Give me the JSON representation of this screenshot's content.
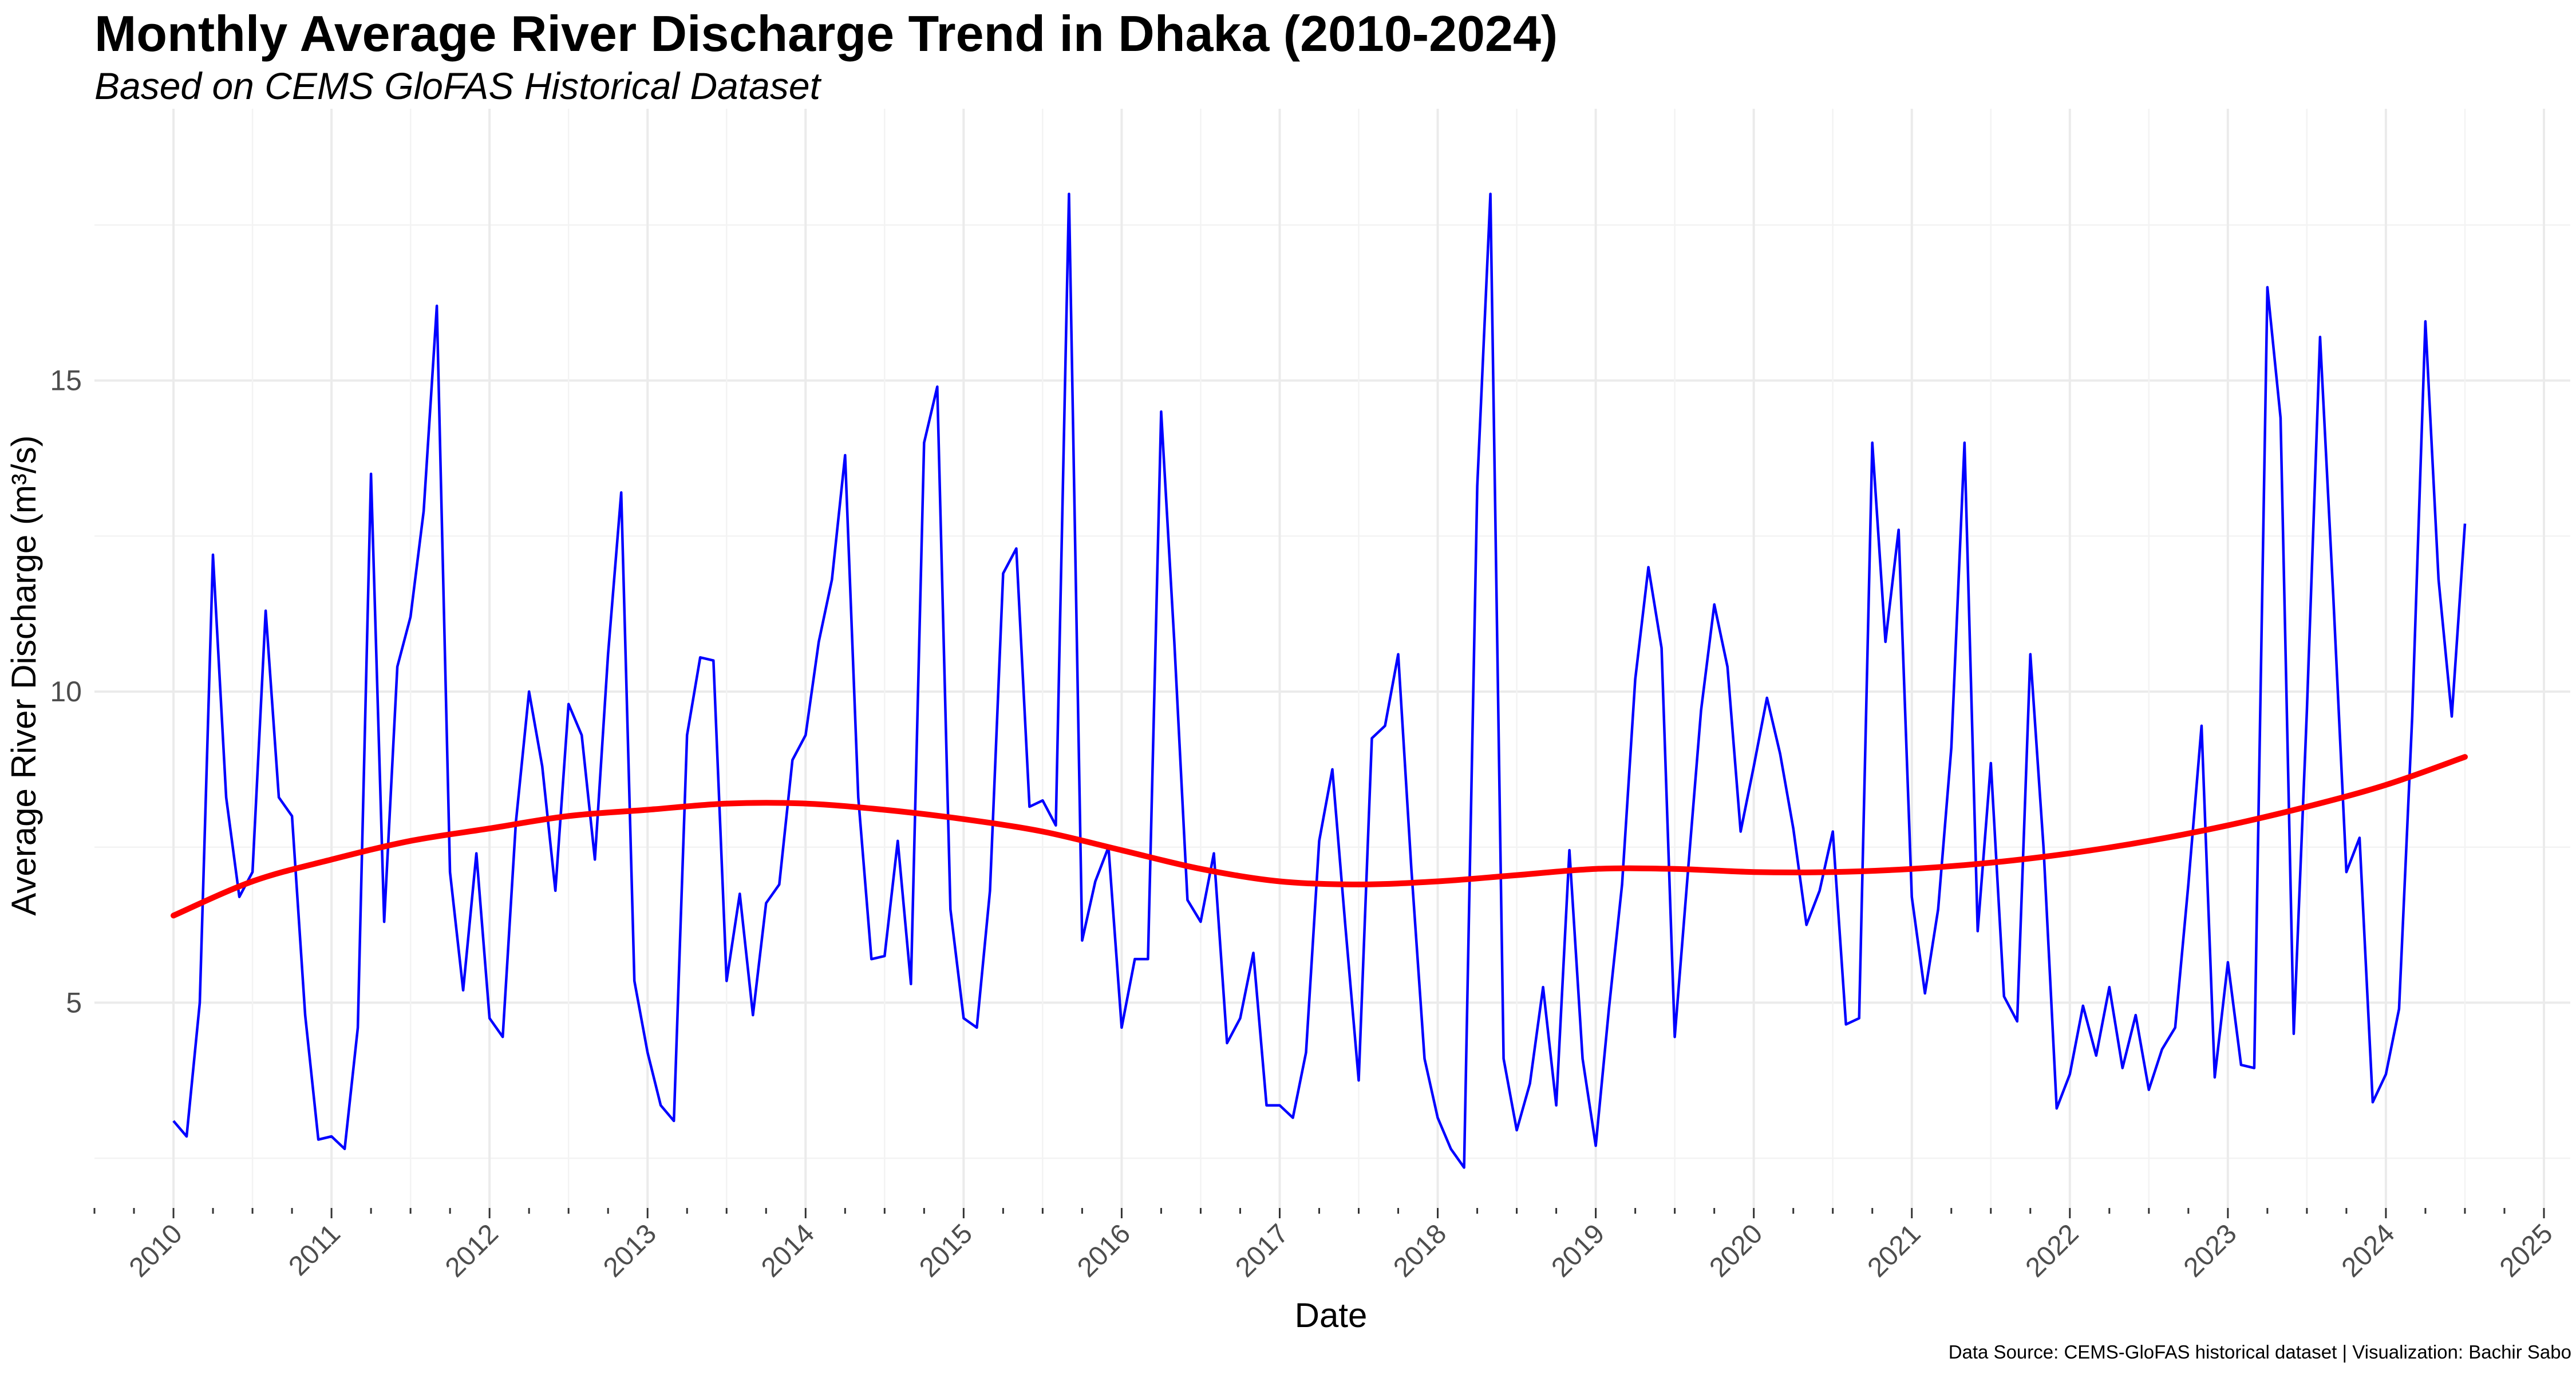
{
  "chart_data": {
    "type": "line",
    "title": "Monthly Average River Discharge Trend in Dhaka (2010-2024)",
    "subtitle": "Based on CEMS GloFAS Historical Dataset",
    "caption": "Data Source: CEMS-GloFAS historical dataset | Visualization: Bachir Sabo",
    "xlabel": "Date",
    "ylabel": "Average River Discharge (m³/s)",
    "x_tick_labels": [
      "2010",
      "2011",
      "2012",
      "2013",
      "2014",
      "2015",
      "2016",
      "2017",
      "2018",
      "2019",
      "2020",
      "2021",
      "2022",
      "2023",
      "2024",
      "2025"
    ],
    "y_ticks": [
      5,
      10,
      15
    ],
    "xlim": [
      "2009-07",
      "2025-03"
    ],
    "ylim": [
      1.7,
      19.0
    ],
    "grid": true,
    "series": [
      {
        "color": "#0000ff",
        "x": [
          "2010-01",
          "2010-02",
          "2010-03",
          "2010-04",
          "2010-05",
          "2010-06",
          "2010-07",
          "2010-08",
          "2010-09",
          "2010-10",
          "2010-11",
          "2010-12",
          "2011-01",
          "2011-02",
          "2011-03",
          "2011-04",
          "2011-05",
          "2011-06",
          "2011-07",
          "2011-08",
          "2011-09",
          "2011-10",
          "2011-11",
          "2011-12",
          "2012-01",
          "2012-02",
          "2012-03",
          "2012-04",
          "2012-05",
          "2012-06",
          "2012-07",
          "2012-08",
          "2012-09",
          "2012-10",
          "2012-11",
          "2012-12",
          "2013-01",
          "2013-02",
          "2013-03",
          "2013-04",
          "2013-05",
          "2013-06",
          "2013-07",
          "2013-08",
          "2013-09",
          "2013-10",
          "2013-11",
          "2013-12",
          "2014-01",
          "2014-02",
          "2014-03",
          "2014-04",
          "2014-05",
          "2014-06",
          "2014-07",
          "2014-08",
          "2014-09",
          "2014-10",
          "2014-11",
          "2014-12",
          "2015-01",
          "2015-02",
          "2015-03",
          "2015-04",
          "2015-05",
          "2015-06",
          "2015-07",
          "2015-08",
          "2015-09",
          "2015-10",
          "2015-11",
          "2015-12",
          "2016-01",
          "2016-02",
          "2016-03",
          "2016-04",
          "2016-05",
          "2016-06",
          "2016-07",
          "2016-08",
          "2016-09",
          "2016-10",
          "2016-11",
          "2016-12",
          "2017-01",
          "2017-02",
          "2017-03",
          "2017-04",
          "2017-05",
          "2017-06",
          "2017-07",
          "2017-08",
          "2017-09",
          "2017-10",
          "2017-11",
          "2017-12",
          "2018-01",
          "2018-02",
          "2018-03",
          "2018-04",
          "2018-05",
          "2018-06",
          "2018-07",
          "2018-08",
          "2018-09",
          "2018-10",
          "2018-11",
          "2018-12",
          "2019-01",
          "2019-02",
          "2019-03",
          "2019-04",
          "2019-05",
          "2019-06",
          "2019-07",
          "2019-08",
          "2019-09",
          "2019-10",
          "2019-11",
          "2019-12",
          "2020-01",
          "2020-02",
          "2020-03",
          "2020-04",
          "2020-05",
          "2020-06",
          "2020-07",
          "2020-08",
          "2020-09",
          "2020-10",
          "2020-11",
          "2020-12",
          "2021-01",
          "2021-02",
          "2021-03",
          "2021-04",
          "2021-05",
          "2021-06",
          "2021-07",
          "2021-08",
          "2021-09",
          "2021-10",
          "2021-11",
          "2021-12",
          "2022-01",
          "2022-02",
          "2022-03",
          "2022-04",
          "2022-05",
          "2022-06",
          "2022-07",
          "2022-08",
          "2022-09",
          "2022-10",
          "2022-11",
          "2022-12",
          "2023-01",
          "2023-02",
          "2023-03",
          "2023-04",
          "2023-05",
          "2023-06",
          "2023-07",
          "2023-08",
          "2023-09",
          "2023-10",
          "2023-11",
          "2023-12",
          "2024-01",
          "2024-02",
          "2024-03",
          "2024-04",
          "2024-05",
          "2024-06",
          "2024-07"
        ],
        "y": [
          3.1,
          2.85,
          5.0,
          12.2,
          8.3,
          6.7,
          7.1,
          11.3,
          8.3,
          8.0,
          4.8,
          2.8,
          2.85,
          2.65,
          4.6,
          13.5,
          6.3,
          10.4,
          11.2,
          12.9,
          16.2,
          7.1,
          5.2,
          7.4,
          4.75,
          4.45,
          7.9,
          10.0,
          8.8,
          6.8,
          9.8,
          9.3,
          7.3,
          10.6,
          13.2,
          5.35,
          4.2,
          3.35,
          3.1,
          9.3,
          10.55,
          10.5,
          5.35,
          6.75,
          4.8,
          6.6,
          6.9,
          8.9,
          9.3,
          10.8,
          11.8,
          13.8,
          8.3,
          5.7,
          5.75,
          7.6,
          5.3,
          14.0,
          14.9,
          6.5,
          4.75,
          4.6,
          6.8,
          11.9,
          12.3,
          8.15,
          8.25,
          7.85,
          18.0,
          6.0,
          6.95,
          7.5,
          4.6,
          5.7,
          5.7,
          14.5,
          10.8,
          6.65,
          6.3,
          7.4,
          4.35,
          4.75,
          5.8,
          3.35,
          3.35,
          3.15,
          4.2,
          7.6,
          8.75,
          6.2,
          3.75,
          9.25,
          9.45,
          10.6,
          7.15,
          4.1,
          3.15,
          2.65,
          2.35,
          13.3,
          18.0,
          4.1,
          2.95,
          3.7,
          5.25,
          3.35,
          7.45,
          4.1,
          2.7,
          4.9,
          6.9,
          10.2,
          12.0,
          10.7,
          4.45,
          7.1,
          9.7,
          11.4,
          10.4,
          7.75,
          8.8,
          9.9,
          9.0,
          7.8,
          6.25,
          6.8,
          7.75,
          4.65,
          4.75,
          14.0,
          10.8,
          12.6,
          6.7,
          5.15,
          6.5,
          9.1,
          14.0,
          6.15,
          8.85,
          5.1,
          4.7,
          10.6,
          7.5,
          3.3,
          3.85,
          4.95,
          4.15,
          5.25,
          3.95,
          4.8,
          3.6,
          4.25,
          4.6,
          6.9,
          9.45,
          3.8,
          5.65,
          4.0,
          3.95,
          16.5,
          14.4,
          4.5,
          9.7,
          15.7,
          11.55,
          7.1,
          7.65,
          3.4,
          3.85,
          4.9,
          9.6,
          15.95,
          11.8,
          9.6,
          12.7
        ]
      },
      {
        "color": "#ff0000",
        "x": [
          "2010-01",
          "2010-07",
          "2011-01",
          "2011-07",
          "2012-01",
          "2012-07",
          "2013-01",
          "2013-07",
          "2014-01",
          "2014-07",
          "2015-01",
          "2015-07",
          "2016-01",
          "2016-07",
          "2017-01",
          "2017-07",
          "2018-01",
          "2018-07",
          "2019-01",
          "2019-07",
          "2020-01",
          "2020-07",
          "2021-01",
          "2021-07",
          "2022-01",
          "2022-07",
          "2023-01",
          "2023-07",
          "2024-01",
          "2024-07"
        ],
        "y": [
          6.4,
          6.95,
          7.3,
          7.6,
          7.8,
          8.0,
          8.1,
          8.2,
          8.2,
          8.1,
          7.95,
          7.75,
          7.45,
          7.15,
          6.95,
          6.9,
          6.95,
          7.05,
          7.15,
          7.15,
          7.1,
          7.1,
          7.15,
          7.25,
          7.4,
          7.6,
          7.85,
          8.15,
          8.5,
          8.95
        ]
      }
    ]
  }
}
